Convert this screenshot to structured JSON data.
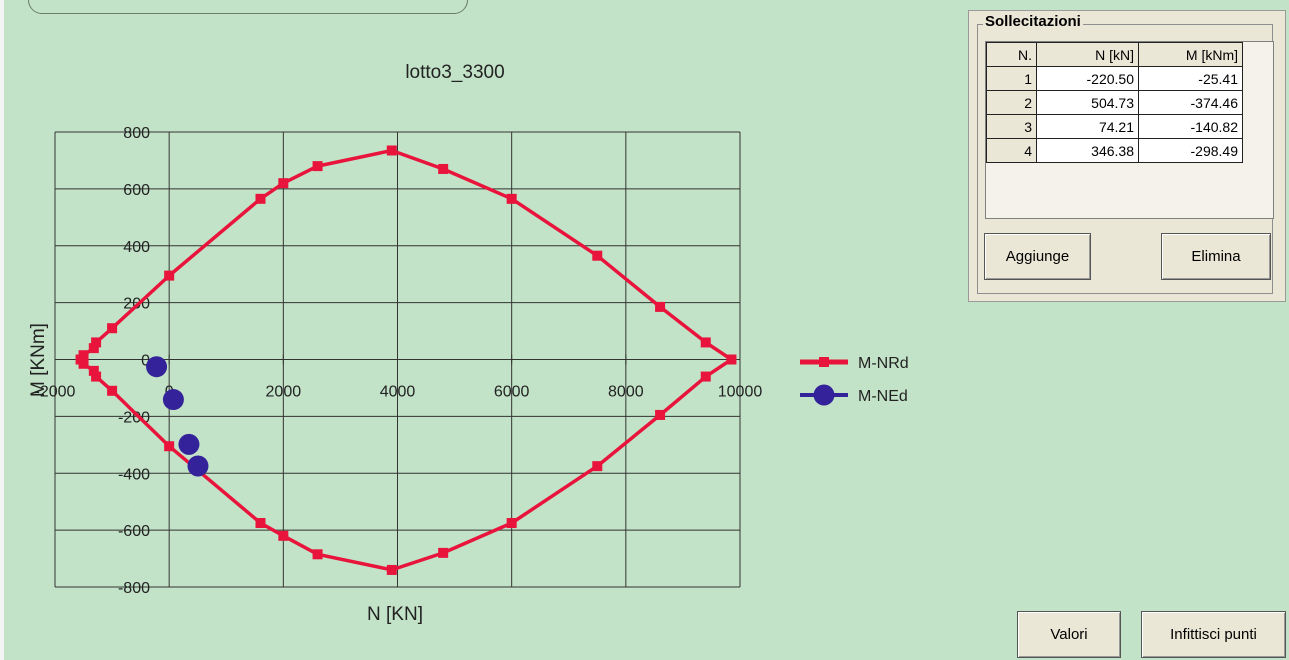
{
  "chart_data": {
    "type": "scatter",
    "title": "lotto3_3300",
    "xlabel": "N [KN]",
    "ylabel": "M [KNm]",
    "xlim": [
      -2000,
      10000
    ],
    "ylim": [
      -800,
      800
    ],
    "x_ticks": [
      -2000,
      0,
      2000,
      4000,
      6000,
      8000,
      10000
    ],
    "y_ticks": [
      800,
      600,
      400,
      200,
      0,
      -200,
      -400,
      -600,
      -800
    ],
    "grid": true,
    "legend_position": "right",
    "series": [
      {
        "name": "M-NRd",
        "color": "#e8143c",
        "marker": "square",
        "line": true,
        "points": [
          [
            -1550,
            0
          ],
          [
            -1500,
            15
          ],
          [
            -1320,
            40
          ],
          [
            -1280,
            60
          ],
          [
            -1000,
            110
          ],
          [
            0,
            295
          ],
          [
            1600,
            565
          ],
          [
            2000,
            620
          ],
          [
            2600,
            680
          ],
          [
            3900,
            735
          ],
          [
            4800,
            670
          ],
          [
            6000,
            565
          ],
          [
            7500,
            365
          ],
          [
            8600,
            185
          ],
          [
            9400,
            60
          ],
          [
            9850,
            0
          ],
          [
            9400,
            -60
          ],
          [
            8600,
            -195
          ],
          [
            7500,
            -375
          ],
          [
            6000,
            -575
          ],
          [
            4800,
            -680
          ],
          [
            3900,
            -740
          ],
          [
            2600,
            -685
          ],
          [
            2000,
            -620
          ],
          [
            1600,
            -575
          ],
          [
            0,
            -305
          ],
          [
            -1000,
            -110
          ],
          [
            -1280,
            -60
          ],
          [
            -1320,
            -40
          ],
          [
            -1500,
            -15
          ],
          [
            -1550,
            0
          ]
        ]
      },
      {
        "name": "M-NEd",
        "color": "#33229a",
        "marker": "circle",
        "line": false,
        "points": [
          [
            -220.5,
            -25.41
          ],
          [
            504.73,
            -374.46
          ],
          [
            74.21,
            -140.82
          ],
          [
            346.38,
            -298.49
          ]
        ]
      }
    ]
  },
  "panel": {
    "title": "Sollecitazioni",
    "columns": [
      "N.",
      "N [kN]",
      "M [kNm]"
    ],
    "rows": [
      [
        "1",
        "-220.50",
        "-25.41"
      ],
      [
        "2",
        "504.73",
        "-374.46"
      ],
      [
        "3",
        "74.21",
        "-140.82"
      ],
      [
        "4",
        "346.38",
        "-298.49"
      ]
    ],
    "add_label": "Aggiunge",
    "delete_label": "Elimina"
  },
  "footer": {
    "values_label": "Valori",
    "densify_label": "Infittisci punti"
  }
}
